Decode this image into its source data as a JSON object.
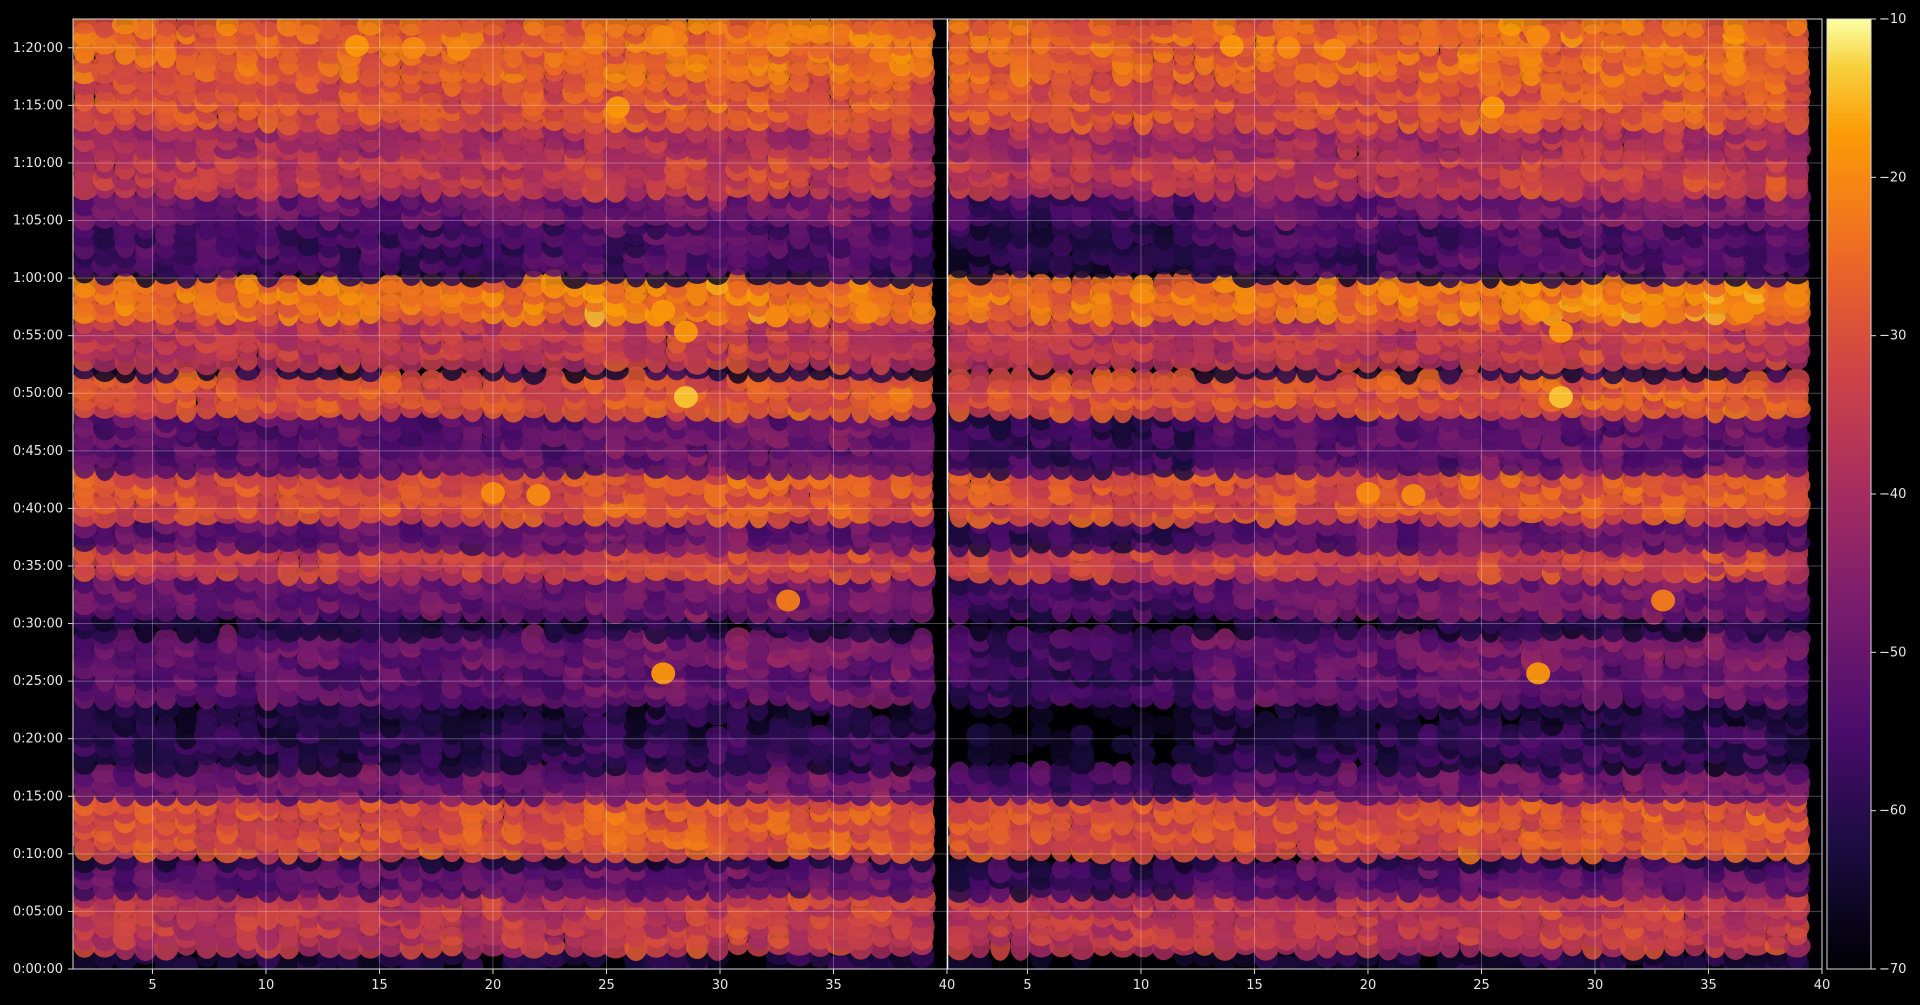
{
  "chart_data": {
    "type": "heatmap",
    "title": "",
    "xlabel": "",
    "ylabel": "",
    "background": "#000000",
    "colormap": "inferno",
    "grid": true,
    "panels": [
      {
        "name": "",
        "xlim": [
          1.5,
          40
        ],
        "x_ticks": [
          5,
          10,
          15,
          20,
          25,
          30,
          35,
          40
        ],
        "x_tick_labels": [
          "5",
          "10",
          "15",
          "20",
          "25",
          "30",
          "35",
          "40"
        ]
      },
      {
        "name": "",
        "xlim": [
          1.5,
          40
        ],
        "x_ticks": [
          5,
          10,
          15,
          20,
          25,
          30,
          35,
          40
        ],
        "x_tick_labels": [
          "5",
          "10",
          "15",
          "20",
          "25",
          "30",
          "35",
          "40"
        ]
      }
    ],
    "y_axis": {
      "unit": "h:mm:ss",
      "range_seconds": [
        0,
        4950
      ],
      "tick_seconds": [
        0,
        300,
        600,
        900,
        1200,
        1500,
        1800,
        2100,
        2400,
        2700,
        3000,
        3300,
        3600,
        3900,
        4200,
        4500,
        4800
      ],
      "tick_labels": [
        "0:00:00",
        "0:05:00",
        "0:10:00",
        "0:15:00",
        "0:20:00",
        "0:25:00",
        "0:30:00",
        "0:35:00",
        "0:40:00",
        "0:45:00",
        "0:50:00",
        "0:55:00",
        "1:00:00",
        "1:05:00",
        "1:10:00",
        "1:15:00",
        "1:20:00"
      ]
    },
    "colorbar": {
      "range": [
        -70,
        -10
      ],
      "ticks": [
        -10,
        -20,
        -30,
        -40,
        -50,
        -60,
        -70
      ],
      "tick_labels": [
        "−10",
        "−20",
        "−30",
        "−40",
        "−50",
        "−60",
        "−70"
      ]
    },
    "intensity_bands": [
      {
        "t_start": 4660,
        "t_end": 4920,
        "level": -26
      },
      {
        "t_start": 4420,
        "t_end": 4650,
        "level": -30
      },
      {
        "t_start": 4250,
        "t_end": 4400,
        "level": -40
      },
      {
        "t_start": 4030,
        "t_end": 4250,
        "level": -36
      },
      {
        "t_start": 3880,
        "t_end": 4020,
        "level": -50
      },
      {
        "t_start": 3660,
        "t_end": 3880,
        "level": -56
      },
      {
        "t_start": 3400,
        "t_end": 3600,
        "level": -24
      },
      {
        "t_start": 3150,
        "t_end": 3400,
        "level": -36
      },
      {
        "t_start": 2880,
        "t_end": 3080,
        "level": -30
      },
      {
        "t_start": 2580,
        "t_end": 2870,
        "level": -52
      },
      {
        "t_start": 2350,
        "t_end": 2570,
        "level": -30
      },
      {
        "t_start": 2200,
        "t_end": 2340,
        "level": -52
      },
      {
        "t_start": 2030,
        "t_end": 2200,
        "level": -34
      },
      {
        "t_start": 1850,
        "t_end": 2030,
        "level": -50
      },
      {
        "t_start": 1590,
        "t_end": 1760,
        "level": -50
      },
      {
        "t_start": 1380,
        "t_end": 1590,
        "level": -52
      },
      {
        "t_start": 1100,
        "t_end": 1260,
        "level": -60
      },
      {
        "t_start": 850,
        "t_end": 1050,
        "level": -50
      },
      {
        "t_start": 600,
        "t_end": 880,
        "level": -30
      },
      {
        "t_start": 420,
        "t_end": 560,
        "level": -52
      },
      {
        "t_start": 80,
        "t_end": 400,
        "level": -36
      }
    ],
    "hotspots": [
      {
        "x": 27.5,
        "t": 3430,
        "level": -18
      },
      {
        "x": 28.5,
        "t": 3320,
        "level": -18
      },
      {
        "x": 28.5,
        "t": 2980,
        "level": -14
      },
      {
        "x": 27.5,
        "t": 4860,
        "level": -20
      },
      {
        "x": 14,
        "t": 4810,
        "level": -18
      },
      {
        "x": 16.5,
        "t": 4800,
        "level": -20
      },
      {
        "x": 18.5,
        "t": 4790,
        "level": -20
      },
      {
        "x": 25.5,
        "t": 4490,
        "level": -18
      },
      {
        "x": 32.5,
        "t": 3400,
        "level": -20
      },
      {
        "x": 36.5,
        "t": 3420,
        "level": -20
      },
      {
        "x": 20,
        "t": 2480,
        "level": -20
      },
      {
        "x": 22,
        "t": 2470,
        "level": -20
      },
      {
        "x": 27.5,
        "t": 1540,
        "level": -18
      },
      {
        "x": 33,
        "t": 1920,
        "level": -22
      }
    ]
  }
}
